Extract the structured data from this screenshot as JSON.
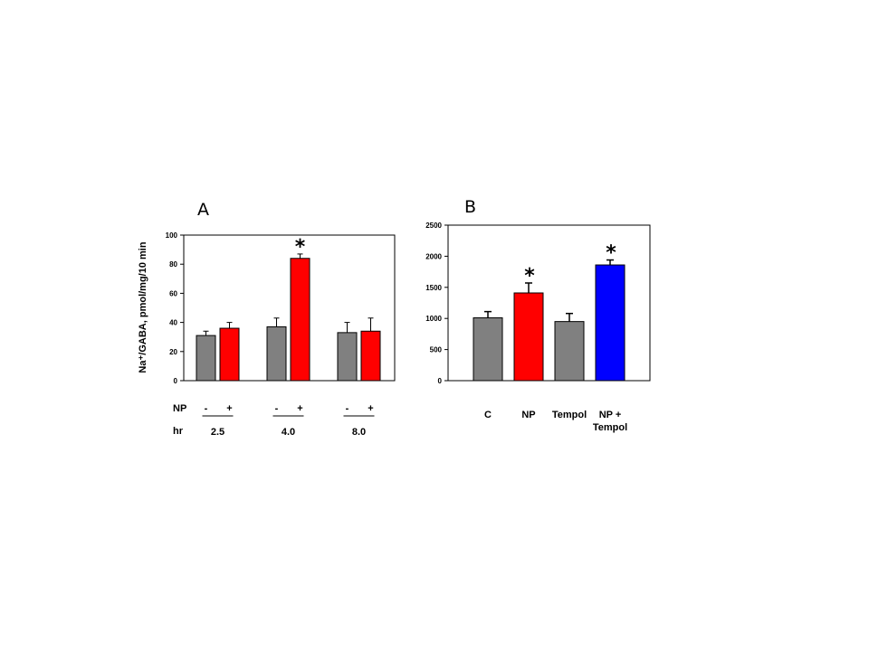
{
  "chart_data": [
    {
      "type": "bar",
      "panel_label": "A",
      "ylabel": "Na⁺/GABA, pmol/mg/10 min",
      "ylim": [
        0,
        100
      ],
      "yticks": [
        "0",
        "20",
        "40",
        "60",
        "80",
        "100"
      ],
      "grid": false,
      "row_labels": {
        "np": "NP",
        "hr": "hr"
      },
      "groups": [
        {
          "hr": "2.5",
          "bars": [
            {
              "np": "-",
              "value": 31,
              "error": 3,
              "color": "#808080",
              "sig": ""
            },
            {
              "np": "+",
              "value": 36,
              "error": 4,
              "color": "#ff0000",
              "sig": ""
            }
          ]
        },
        {
          "hr": "4.0",
          "bars": [
            {
              "np": "-",
              "value": 37,
              "error": 6,
              "color": "#808080",
              "sig": ""
            },
            {
              "np": "+",
              "value": 84,
              "error": 3,
              "color": "#ff0000",
              "sig": "*"
            }
          ]
        },
        {
          "hr": "8.0",
          "bars": [
            {
              "np": "-",
              "value": 33,
              "error": 7,
              "color": "#808080",
              "sig": ""
            },
            {
              "np": "+",
              "value": 34,
              "error": 9,
              "color": "#ff0000",
              "sig": ""
            }
          ]
        }
      ]
    },
    {
      "type": "bar",
      "panel_label": "B",
      "ylim": [
        0,
        2500
      ],
      "yticks": [
        "0",
        "500",
        "1000",
        "1500",
        "2000",
        "2500"
      ],
      "grid": false,
      "bars": [
        {
          "label": [
            "C"
          ],
          "value": 1010,
          "error": 100,
          "color": "#808080",
          "sig": ""
        },
        {
          "label": [
            "NP"
          ],
          "value": 1410,
          "error": 160,
          "color": "#ff0000",
          "sig": "*"
        },
        {
          "label": [
            "Tempol"
          ],
          "value": 950,
          "error": 130,
          "color": "#808080",
          "sig": ""
        },
        {
          "label": [
            "NP  +",
            "Tempol"
          ],
          "value": 1860,
          "error": 80,
          "color": "#0000ff",
          "sig": "*"
        }
      ]
    }
  ]
}
